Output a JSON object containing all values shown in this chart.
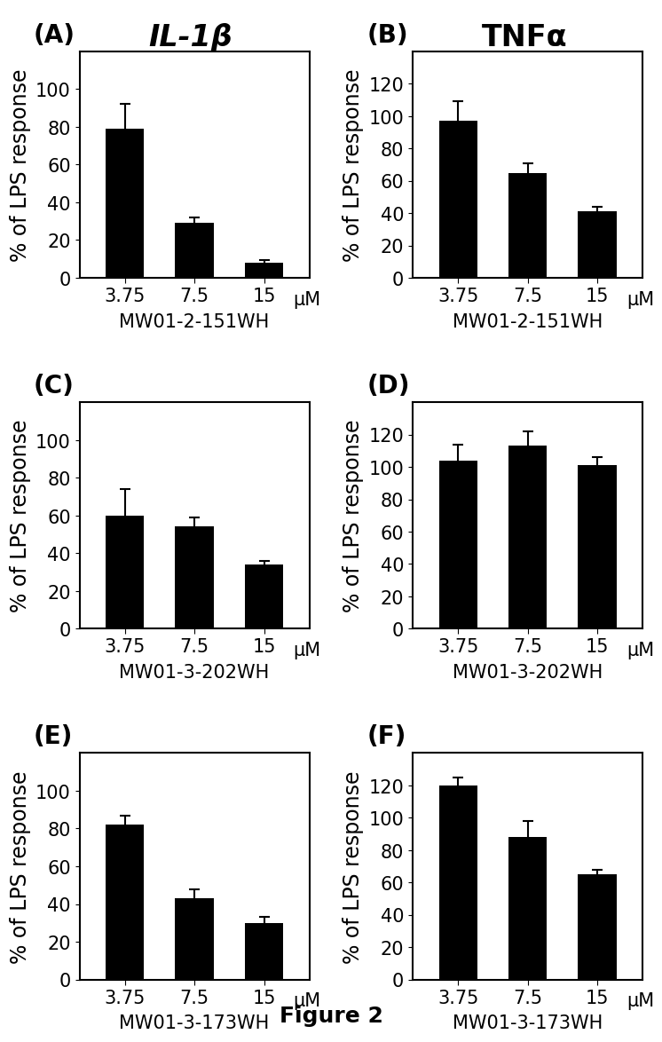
{
  "panels": [
    {
      "label": "(A)",
      "title": "IL-1β",
      "xlabel": "MW01-2-151WH",
      "ylabel": "% of LPS response",
      "categories": [
        "3.75",
        "7.5",
        "15"
      ],
      "values": [
        79,
        29,
        8
      ],
      "errors": [
        13,
        3,
        1.5
      ],
      "ylim": [
        0,
        120
      ],
      "yticks": [
        0,
        20,
        40,
        60,
        80,
        100
      ],
      "mu_label": "μM"
    },
    {
      "label": "(B)",
      "title": "TNFα",
      "xlabel": "MW01-2-151WH",
      "ylabel": "% of LPS response",
      "categories": [
        "3.75",
        "7.5",
        "15"
      ],
      "values": [
        97,
        65,
        41
      ],
      "errors": [
        12,
        6,
        3
      ],
      "ylim": [
        0,
        140
      ],
      "yticks": [
        0,
        20,
        40,
        60,
        80,
        100,
        120
      ],
      "mu_label": "μM"
    },
    {
      "label": "(C)",
      "title": "",
      "xlabel": "MW01-3-202WH",
      "ylabel": "% of LPS response",
      "categories": [
        "3.75",
        "7.5",
        "15"
      ],
      "values": [
        60,
        54,
        34
      ],
      "errors": [
        14,
        5,
        2
      ],
      "ylim": [
        0,
        120
      ],
      "yticks": [
        0,
        20,
        40,
        60,
        80,
        100
      ],
      "mu_label": "μM"
    },
    {
      "label": "(D)",
      "title": "",
      "xlabel": "MW01-3-202WH",
      "ylabel": "% of LPS response",
      "categories": [
        "3.75",
        "7.5",
        "15"
      ],
      "values": [
        104,
        113,
        101
      ],
      "errors": [
        10,
        9,
        5
      ],
      "ylim": [
        0,
        140
      ],
      "yticks": [
        0,
        20,
        40,
        60,
        80,
        100,
        120
      ],
      "mu_label": "μM"
    },
    {
      "label": "(E)",
      "title": "",
      "xlabel": "MW01-3-173WH",
      "ylabel": "% of LPS response",
      "categories": [
        "3.75",
        "7.5",
        "15"
      ],
      "values": [
        82,
        43,
        30
      ],
      "errors": [
        5,
        5,
        3
      ],
      "ylim": [
        0,
        120
      ],
      "yticks": [
        0,
        20,
        40,
        60,
        80,
        100
      ],
      "mu_label": "μM"
    },
    {
      "label": "(F)",
      "title": "",
      "xlabel": "MW01-3-173WH",
      "ylabel": "% of LPS response",
      "categories": [
        "3.75",
        "7.5",
        "15"
      ],
      "values": [
        120,
        88,
        65
      ],
      "errors": [
        5,
        10,
        3
      ],
      "ylim": [
        0,
        140
      ],
      "yticks": [
        0,
        20,
        40,
        60,
        80,
        100,
        120
      ],
      "mu_label": "μM"
    }
  ],
  "figure_caption": "Figure 2",
  "bar_color": "#000000",
  "background_color": "#ffffff",
  "bar_width": 0.55,
  "title_fontsize": 24,
  "label_fontsize": 17,
  "tick_fontsize": 15,
  "xlabel_fontsize": 15,
  "panel_label_fontsize": 20,
  "caption_fontsize": 18
}
